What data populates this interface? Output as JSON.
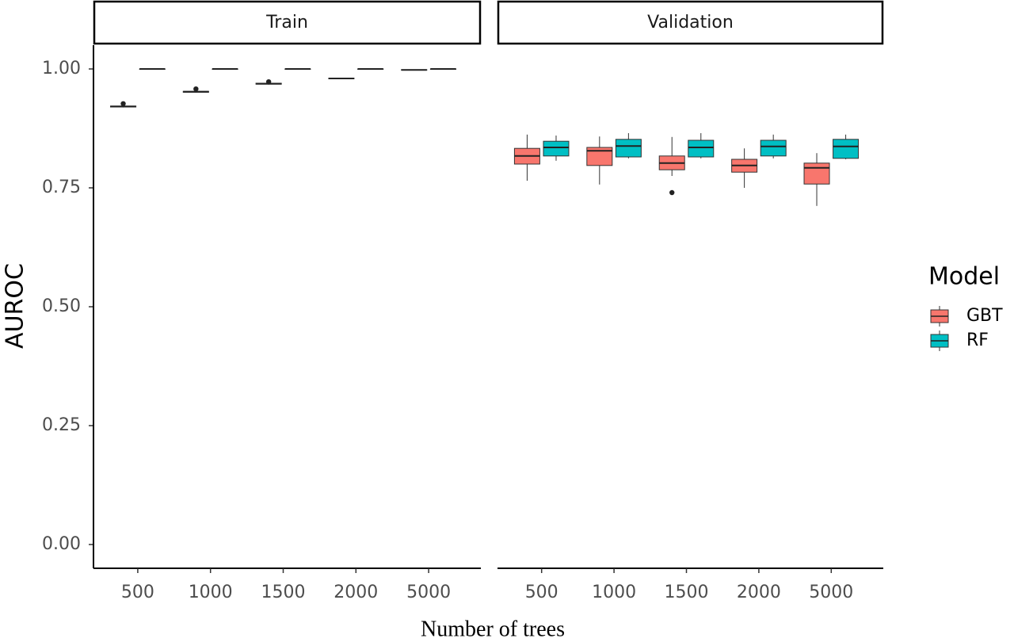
{
  "chart_data": [
    {
      "type": "box",
      "title": "Train",
      "ylabel": "AUROC",
      "xlabel": "Number of trees",
      "legend_title": "Model",
      "ylim": [
        -0.05,
        1.05
      ],
      "yticks": [
        {
          "value": 0,
          "label": "0.00"
        },
        {
          "value": 0.25,
          "label": "0.25"
        },
        {
          "value": 0.5,
          "label": "0.50"
        },
        {
          "value": 0.75,
          "label": "0.75"
        },
        {
          "value": 1,
          "label": "1.00"
        }
      ],
      "categories": [
        "500",
        "1000",
        "1500",
        "2000",
        "5000"
      ],
      "series": [
        {
          "name": "GBT",
          "color": "#F8766D",
          "values": [
            {
              "min": 0.919,
              "q1": 0.92,
              "median": 0.921,
              "q3": 0.922,
              "max": 0.923,
              "outliers": [
                0.927
              ]
            },
            {
              "min": 0.95,
              "q1": 0.951,
              "median": 0.952,
              "q3": 0.953,
              "max": 0.954,
              "outliers": [
                0.958
              ]
            },
            {
              "min": 0.967,
              "q1": 0.968,
              "median": 0.969,
              "q3": 0.97,
              "max": 0.971,
              "outliers": [
                0.973
              ]
            },
            {
              "min": 0.979,
              "q1": 0.9795,
              "median": 0.98,
              "q3": 0.9805,
              "max": 0.981,
              "outliers": []
            },
            {
              "min": 0.997,
              "q1": 0.9975,
              "median": 0.998,
              "q3": 0.9985,
              "max": 0.999,
              "outliers": []
            }
          ]
        },
        {
          "name": "RF",
          "color": "#00BFC4",
          "values": [
            {
              "min": 0.999,
              "q1": 0.9995,
              "median": 1.0,
              "q3": 1.0,
              "max": 1.0,
              "outliers": []
            },
            {
              "min": 0.999,
              "q1": 0.9995,
              "median": 1.0,
              "q3": 1.0,
              "max": 1.0,
              "outliers": []
            },
            {
              "min": 0.999,
              "q1": 0.9995,
              "median": 1.0,
              "q3": 1.0,
              "max": 1.0,
              "outliers": []
            },
            {
              "min": 0.999,
              "q1": 0.9995,
              "median": 1.0,
              "q3": 1.0,
              "max": 1.0,
              "outliers": []
            },
            {
              "min": 0.999,
              "q1": 0.9995,
              "median": 1.0,
              "q3": 1.0,
              "max": 1.0,
              "outliers": []
            }
          ]
        }
      ]
    },
    {
      "type": "box",
      "title": "Validation",
      "categories": [
        "500",
        "1000",
        "1500",
        "2000",
        "5000"
      ],
      "series": [
        {
          "values": [
            {
              "min": 0.765,
              "q1": 0.8,
              "median": 0.817,
              "q3": 0.833,
              "max": 0.862,
              "outliers": []
            },
            {
              "min": 0.757,
              "q1": 0.797,
              "median": 0.828,
              "q3": 0.835,
              "max": 0.858,
              "outliers": []
            },
            {
              "min": 0.775,
              "q1": 0.788,
              "median": 0.802,
              "q3": 0.817,
              "max": 0.857,
              "outliers": [
                0.74
              ]
            },
            {
              "min": 0.75,
              "q1": 0.783,
              "median": 0.797,
              "q3": 0.81,
              "max": 0.833,
              "outliers": []
            },
            {
              "min": 0.712,
              "q1": 0.758,
              "median": 0.792,
              "q3": 0.802,
              "max": 0.823,
              "outliers": []
            }
          ]
        },
        {
          "values": [
            {
              "min": 0.807,
              "q1": 0.817,
              "median": 0.835,
              "q3": 0.848,
              "max": 0.86,
              "outliers": []
            },
            {
              "min": 0.812,
              "q1": 0.815,
              "median": 0.838,
              "q3": 0.852,
              "max": 0.865,
              "outliers": []
            },
            {
              "min": 0.812,
              "q1": 0.815,
              "median": 0.835,
              "q3": 0.85,
              "max": 0.865,
              "outliers": []
            },
            {
              "min": 0.812,
              "q1": 0.817,
              "median": 0.837,
              "q3": 0.85,
              "max": 0.862,
              "outliers": []
            },
            {
              "min": 0.81,
              "q1": 0.812,
              "median": 0.837,
              "q3": 0.852,
              "max": 0.862,
              "outliers": []
            }
          ]
        }
      ]
    }
  ]
}
